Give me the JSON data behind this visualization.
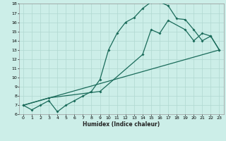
{
  "xlabel": "Humidex (Indice chaleur)",
  "bg_color": "#cceee8",
  "grid_color": "#b0d8d0",
  "line_color": "#1a6b5a",
  "line1_x": [
    0,
    1,
    2,
    3,
    4,
    5,
    6,
    7,
    8,
    9,
    10,
    11,
    12,
    13,
    14,
    15,
    16,
    17,
    18,
    19,
    20,
    21,
    22,
    23
  ],
  "line1_y": [
    7.0,
    6.5,
    7.0,
    7.5,
    6.3,
    7.0,
    7.5,
    8.0,
    8.5,
    9.8,
    13.0,
    14.8,
    16.0,
    16.5,
    17.5,
    18.2,
    18.2,
    17.8,
    16.4,
    16.3,
    15.2,
    14.0,
    14.5,
    13.0
  ],
  "line2_x": [
    0,
    3,
    9,
    14,
    15,
    16,
    17,
    19,
    20,
    21,
    22,
    23
  ],
  "line2_y": [
    7.0,
    7.8,
    8.5,
    12.5,
    15.2,
    14.8,
    16.2,
    15.2,
    14.0,
    14.8,
    14.5,
    13.0
  ],
  "line3_x": [
    0,
    23
  ],
  "line3_y": [
    7.0,
    13.0
  ],
  "xlim": [
    -0.5,
    23.5
  ],
  "ylim": [
    6,
    18
  ],
  "yticks": [
    6,
    7,
    8,
    9,
    10,
    11,
    12,
    13,
    14,
    15,
    16,
    17,
    18
  ],
  "xticks": [
    0,
    1,
    2,
    3,
    4,
    5,
    6,
    7,
    8,
    9,
    10,
    11,
    12,
    13,
    14,
    15,
    16,
    17,
    18,
    19,
    20,
    21,
    22,
    23
  ],
  "xlabel_fontsize": 5.5,
  "tick_fontsize": 4.5,
  "linewidth": 0.9,
  "markersize": 2.0
}
